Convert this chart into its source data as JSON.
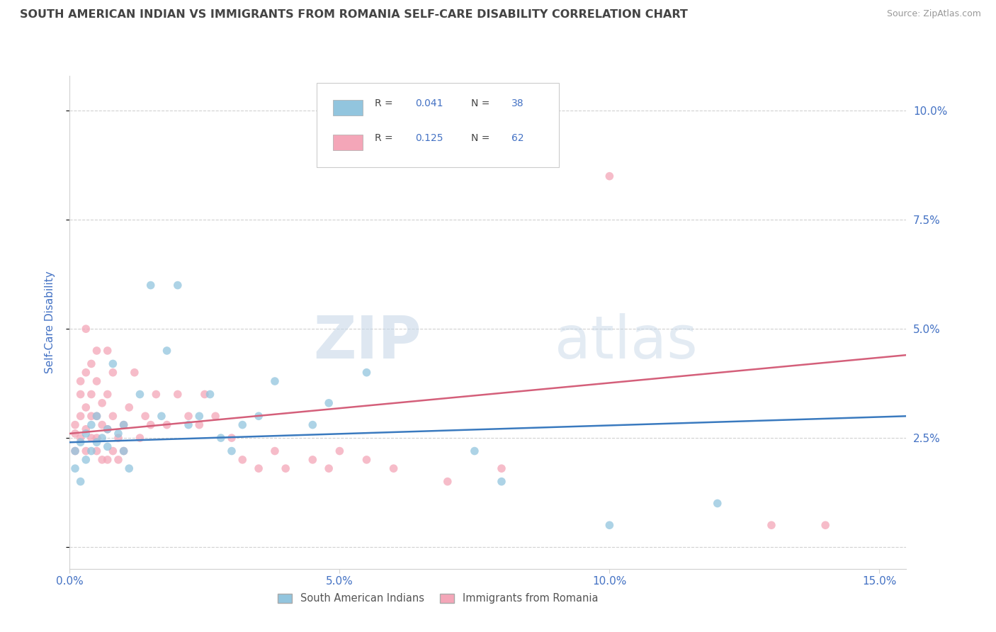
{
  "title": "SOUTH AMERICAN INDIAN VS IMMIGRANTS FROM ROMANIA SELF-CARE DISABILITY CORRELATION CHART",
  "source": "Source: ZipAtlas.com",
  "ylabel": "Self-Care Disability",
  "xlim": [
    0.0,
    0.155
  ],
  "ylim": [
    -0.005,
    0.108
  ],
  "xticks": [
    0.0,
    0.05,
    0.1,
    0.15
  ],
  "xticklabels": [
    "0.0%",
    "5.0%",
    "10.0%",
    "15.0%"
  ],
  "yticks": [
    0.0,
    0.025,
    0.05,
    0.075,
    0.1
  ],
  "yticklabels": [
    "",
    "2.5%",
    "5.0%",
    "7.5%",
    "10.0%"
  ],
  "legend_labels": [
    "South American Indians",
    "Immigrants from Romania"
  ],
  "blue_color": "#92c5de",
  "pink_color": "#f4a6b8",
  "blue_line_color": "#3a7abf",
  "pink_line_color": "#d45f7a",
  "R_blue": "0.041",
  "N_blue": "38",
  "R_pink": "0.125",
  "N_pink": "62",
  "blue_scatter_x": [
    0.001,
    0.001,
    0.002,
    0.002,
    0.003,
    0.003,
    0.004,
    0.004,
    0.005,
    0.005,
    0.006,
    0.007,
    0.007,
    0.008,
    0.009,
    0.01,
    0.01,
    0.011,
    0.013,
    0.015,
    0.017,
    0.018,
    0.02,
    0.022,
    0.024,
    0.026,
    0.028,
    0.03,
    0.032,
    0.035,
    0.038,
    0.045,
    0.048,
    0.055,
    0.075,
    0.08,
    0.1,
    0.12
  ],
  "blue_scatter_y": [
    0.022,
    0.018,
    0.024,
    0.015,
    0.026,
    0.02,
    0.028,
    0.022,
    0.03,
    0.024,
    0.025,
    0.027,
    0.023,
    0.042,
    0.026,
    0.028,
    0.022,
    0.018,
    0.035,
    0.06,
    0.03,
    0.045,
    0.06,
    0.028,
    0.03,
    0.035,
    0.025,
    0.022,
    0.028,
    0.03,
    0.038,
    0.028,
    0.033,
    0.04,
    0.022,
    0.015,
    0.005,
    0.01
  ],
  "pink_scatter_x": [
    0.001,
    0.001,
    0.001,
    0.002,
    0.002,
    0.002,
    0.002,
    0.003,
    0.003,
    0.003,
    0.003,
    0.003,
    0.004,
    0.004,
    0.004,
    0.004,
    0.005,
    0.005,
    0.005,
    0.005,
    0.005,
    0.006,
    0.006,
    0.006,
    0.007,
    0.007,
    0.007,
    0.007,
    0.008,
    0.008,
    0.008,
    0.009,
    0.009,
    0.01,
    0.01,
    0.011,
    0.012,
    0.013,
    0.014,
    0.015,
    0.016,
    0.018,
    0.02,
    0.022,
    0.024,
    0.025,
    0.027,
    0.03,
    0.032,
    0.035,
    0.038,
    0.04,
    0.045,
    0.048,
    0.05,
    0.055,
    0.06,
    0.07,
    0.08,
    0.1,
    0.13,
    0.14
  ],
  "pink_scatter_y": [
    0.022,
    0.026,
    0.028,
    0.025,
    0.03,
    0.035,
    0.038,
    0.022,
    0.027,
    0.032,
    0.04,
    0.05,
    0.025,
    0.03,
    0.035,
    0.042,
    0.022,
    0.025,
    0.03,
    0.038,
    0.045,
    0.02,
    0.028,
    0.033,
    0.02,
    0.027,
    0.035,
    0.045,
    0.022,
    0.03,
    0.04,
    0.02,
    0.025,
    0.022,
    0.028,
    0.032,
    0.04,
    0.025,
    0.03,
    0.028,
    0.035,
    0.028,
    0.035,
    0.03,
    0.028,
    0.035,
    0.03,
    0.025,
    0.02,
    0.018,
    0.022,
    0.018,
    0.02,
    0.018,
    0.022,
    0.02,
    0.018,
    0.015,
    0.018,
    0.085,
    0.005,
    0.005
  ],
  "watermark_zip": "ZIP",
  "watermark_atlas": "atlas",
  "title_color": "#444444",
  "axis_label_color": "#4472c4",
  "tick_color": "#4472c4",
  "grid_color": "#d0d0d0",
  "background_color": "#ffffff"
}
